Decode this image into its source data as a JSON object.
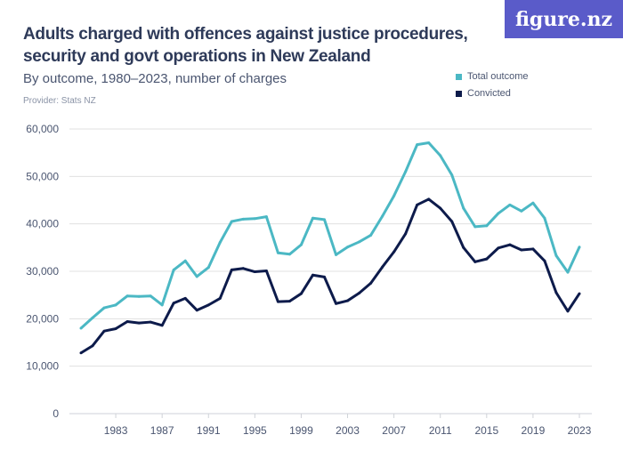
{
  "logo": "figure.nz",
  "chart_data": {
    "type": "line",
    "title": "Adults charged with offences against justice procedures, security and govt operations in New Zealand",
    "subtitle": "By outcome, 1980–2023, number of charges",
    "provider": "Provider: Stats NZ",
    "x": [
      1980,
      1981,
      1982,
      1983,
      1984,
      1985,
      1986,
      1987,
      1988,
      1989,
      1990,
      1991,
      1992,
      1993,
      1994,
      1995,
      1996,
      1997,
      1998,
      1999,
      2000,
      2001,
      2002,
      2003,
      2004,
      2005,
      2006,
      2007,
      2008,
      2009,
      2010,
      2011,
      2012,
      2013,
      2014,
      2015,
      2016,
      2017,
      2018,
      2019,
      2020,
      2021,
      2022,
      2023
    ],
    "x_ticks": [
      "1983",
      "1987",
      "1991",
      "1995",
      "1999",
      "2003",
      "2007",
      "2011",
      "2015",
      "2019",
      "2023"
    ],
    "y_ticks": [
      "0",
      "10,000",
      "20,000",
      "30,000",
      "40,000",
      "50,000",
      "60,000"
    ],
    "ylim": [
      0,
      60000
    ],
    "grid": true,
    "legend_position": "top-right",
    "series": [
      {
        "name": "Total outcome",
        "color": "#4bb8c4",
        "values": [
          18000,
          20200,
          22300,
          22900,
          24800,
          24700,
          24800,
          22900,
          30300,
          32200,
          28900,
          30800,
          36100,
          40500,
          41000,
          41100,
          41500,
          33900,
          33600,
          35600,
          41200,
          40900,
          33500,
          35100,
          36200,
          37600,
          41600,
          45900,
          51000,
          56700,
          57100,
          54400,
          50300,
          43300,
          39400,
          39600,
          42200,
          44000,
          42700,
          44400,
          41200,
          33300,
          29800,
          35100
        ]
      },
      {
        "name": "Convicted",
        "color": "#0d1b4b",
        "values": [
          12800,
          14300,
          17400,
          17900,
          19400,
          19100,
          19300,
          18600,
          23300,
          24300,
          21800,
          22900,
          24300,
          30300,
          30600,
          29900,
          30100,
          23600,
          23700,
          25300,
          29200,
          28800,
          23200,
          23800,
          25400,
          27500,
          30900,
          34100,
          37900,
          44000,
          45200,
          43300,
          40500,
          35000,
          32000,
          32600,
          34900,
          35600,
          34500,
          34700,
          32200,
          25500,
          21600,
          25300
        ]
      }
    ]
  }
}
